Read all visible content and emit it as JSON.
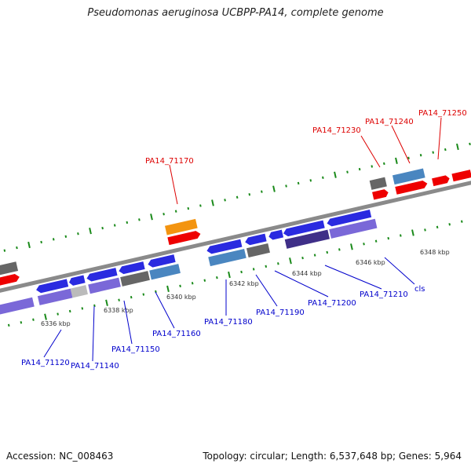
{
  "header": {
    "title": "Pseudomonas aeruginosa UCBPP-PA14, complete genome"
  },
  "footer": {
    "accession": "Accession: NC_008463",
    "topology": "Topology: circular; Length: 6,537,648 bp; Genes: 5,964"
  },
  "colors": {
    "backbone": "#888888",
    "tick": "#1a8a1a",
    "forward_label": "#dd0000",
    "reverse_label": "#0000cc",
    "kbp_label": "#333333",
    "blue": "#2a2ae0",
    "red": "#ee0000",
    "orange": "#f39410",
    "steel": "#4a86c0",
    "gray": "#666666",
    "light_gray": "#bbbbbb",
    "lavender": "#7a68d8",
    "dark_purple": "#3f2f88"
  },
  "scale_labels": [
    "6336 kbp",
    "6338 kbp",
    "6340 kbp",
    "6342 kbp",
    "6344 kbp",
    "6346 kbp",
    "6348 kbp"
  ],
  "gene_labels": {
    "forward": [
      "PA14_71170",
      "PA14_71230",
      "PA14_71240",
      "PA14_71250"
    ],
    "reverse": [
      "PA14_71120",
      "PA14_71140",
      "PA14_71150",
      "PA14_71160",
      "PA14_71180",
      "PA14_71190",
      "PA14_71200",
      "PA14_71210",
      "cls"
    ]
  }
}
